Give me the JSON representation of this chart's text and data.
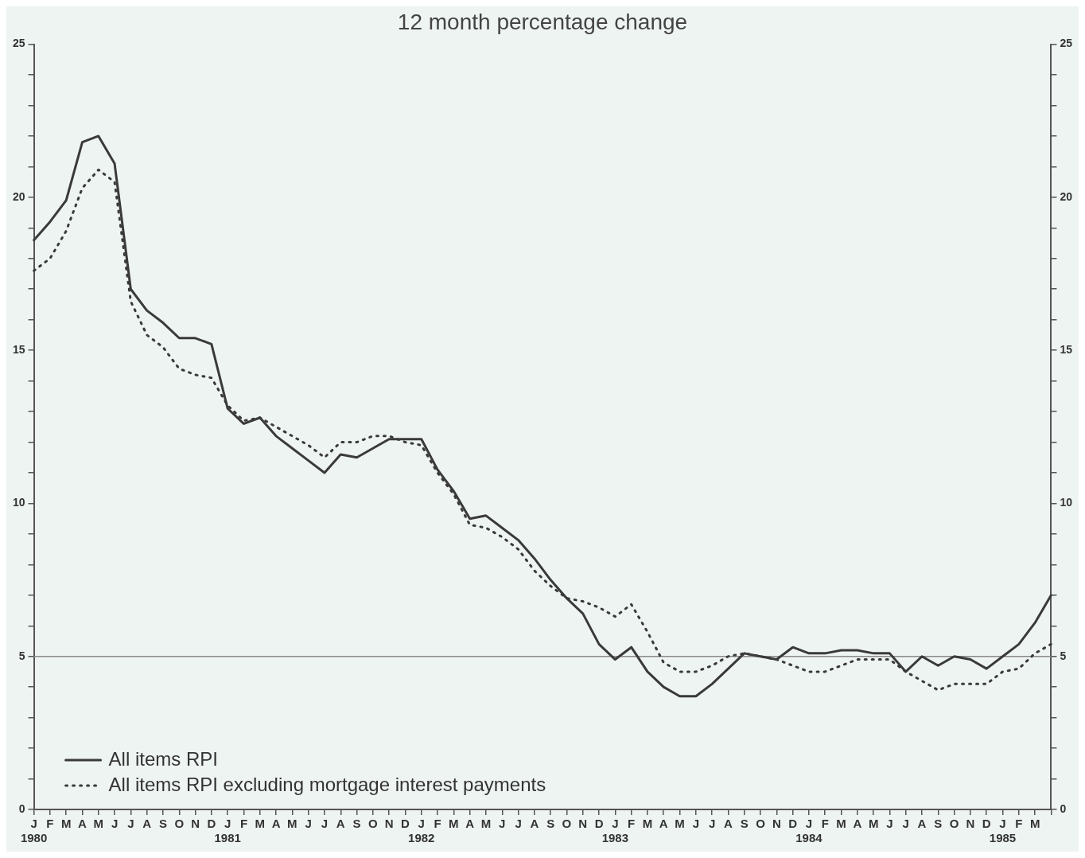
{
  "chart_data": {
    "type": "line",
    "title": "12 month percentage change",
    "categories": [
      "J\n1980",
      "F",
      "M",
      "A",
      "M",
      "J",
      "J",
      "A",
      "S",
      "O",
      "N",
      "D",
      "J\n1981",
      "F",
      "M",
      "A",
      "M",
      "J",
      "J",
      "A",
      "S",
      "O",
      "N",
      "D",
      "J\n1982",
      "F",
      "M",
      "A",
      "M",
      "J",
      "J",
      "A",
      "S",
      "O",
      "N",
      "D",
      "J\n1983",
      "F",
      "M",
      "A",
      "M",
      "J",
      "J",
      "A",
      "S",
      "O",
      "N",
      "D",
      "J\n1984",
      "F",
      "M",
      "A",
      "M",
      "J",
      "J",
      "A",
      "S",
      "O",
      "N",
      "D",
      "J\n1985",
      "F",
      "M",
      null
    ],
    "series": [
      {
        "name": "All items RPI",
        "color": "#3a3a3a",
        "line_style": "solid",
        "values": [
          18.6,
          19.2,
          19.9,
          21.8,
          22.0,
          21.1,
          17.0,
          16.3,
          15.9,
          15.4,
          15.4,
          15.2,
          13.1,
          12.6,
          12.8,
          12.2,
          11.8,
          11.4,
          11.0,
          11.6,
          11.5,
          11.8,
          12.1,
          12.1,
          12.1,
          11.1,
          10.4,
          9.5,
          9.6,
          9.2,
          8.8,
          8.2,
          7.5,
          6.9,
          6.4,
          5.4,
          4.9,
          5.3,
          4.5,
          4.0,
          3.7,
          3.7,
          4.1,
          4.6,
          5.1,
          5.0,
          4.9,
          5.3,
          5.1,
          5.1,
          5.2,
          5.2,
          5.1,
          5.1,
          4.5,
          5.0,
          4.7,
          5.0,
          4.9,
          4.6,
          5.0,
          5.4,
          6.1,
          7.0
        ]
      },
      {
        "name": "All items RPI excluding mortgage interest payments",
        "color": "#3a3a3a",
        "line_style": "dotted",
        "values": [
          17.6,
          18.0,
          18.9,
          20.3,
          20.9,
          20.5,
          16.6,
          15.5,
          15.1,
          14.4,
          14.2,
          14.1,
          13.2,
          12.7,
          12.8,
          12.5,
          12.2,
          11.9,
          11.5,
          12.0,
          12.0,
          12.2,
          12.2,
          12.0,
          11.9,
          11.0,
          10.3,
          9.3,
          9.2,
          8.9,
          8.5,
          7.8,
          7.3,
          6.9,
          6.8,
          6.6,
          6.3,
          6.7,
          5.8,
          4.8,
          4.5,
          4.5,
          4.7,
          5.0,
          5.1,
          5.0,
          4.9,
          4.7,
          4.5,
          4.5,
          4.7,
          4.9,
          4.9,
          4.9,
          4.5,
          4.2,
          3.9,
          4.1,
          4.1,
          4.1,
          4.5,
          4.6,
          5.1,
          5.4
        ]
      }
    ],
    "ylim": [
      0,
      25
    ],
    "yticks": [
      0,
      {
        "value": 1,
        "label": null
      },
      {
        "value": 2,
        "label": null
      },
      {
        "value": 3,
        "label": null
      },
      {
        "value": 4,
        "label": null
      },
      5,
      {
        "value": 6,
        "label": null
      },
      {
        "value": 7,
        "label": null
      },
      {
        "value": 8,
        "label": null
      },
      {
        "value": 9,
        "label": null
      },
      10,
      {
        "value": 11,
        "label": null
      },
      {
        "value": 12,
        "label": null
      },
      {
        "value": 13,
        "label": null
      },
      {
        "value": 14,
        "label": null
      },
      15,
      {
        "value": 16,
        "label": null
      },
      {
        "value": 17,
        "label": null
      },
      {
        "value": 18,
        "label": null
      },
      {
        "value": 19,
        "label": null
      },
      20,
      {
        "value": 21,
        "label": null
      },
      {
        "value": 22,
        "label": null
      },
      {
        "value": 23,
        "label": null
      },
      {
        "value": 24,
        "label": null
      },
      25
    ],
    "y2lim": [
      0,
      25
    ],
    "y2ticks": [
      0,
      {
        "value": 1,
        "label": null
      },
      {
        "value": 2,
        "label": null
      },
      {
        "value": 3,
        "label": null
      },
      {
        "value": 4,
        "label": null
      },
      5,
      {
        "value": 6,
        "label": null
      },
      {
        "value": 7,
        "label": null
      },
      {
        "value": 8,
        "label": null
      },
      {
        "value": 9,
        "label": null
      },
      10,
      {
        "value": 11,
        "label": null
      },
      {
        "value": 12,
        "label": null
      },
      {
        "value": 13,
        "label": null
      },
      {
        "value": 14,
        "label": null
      },
      15,
      {
        "value": 16,
        "label": null
      },
      {
        "value": 17,
        "label": null
      },
      {
        "value": 18,
        "label": null
      },
      {
        "value": 19,
        "label": null
      },
      20,
      {
        "value": 21,
        "label": null
      },
      {
        "value": 22,
        "label": null
      },
      {
        "value": 23,
        "label": null
      },
      {
        "value": 24,
        "label": null
      },
      25
    ],
    "ref_lines": [
      {
        "axis": "y",
        "value": 5,
        "color": "#8a8a8a"
      }
    ],
    "grid": false,
    "legend": "bottom left",
    "marker": "none"
  }
}
